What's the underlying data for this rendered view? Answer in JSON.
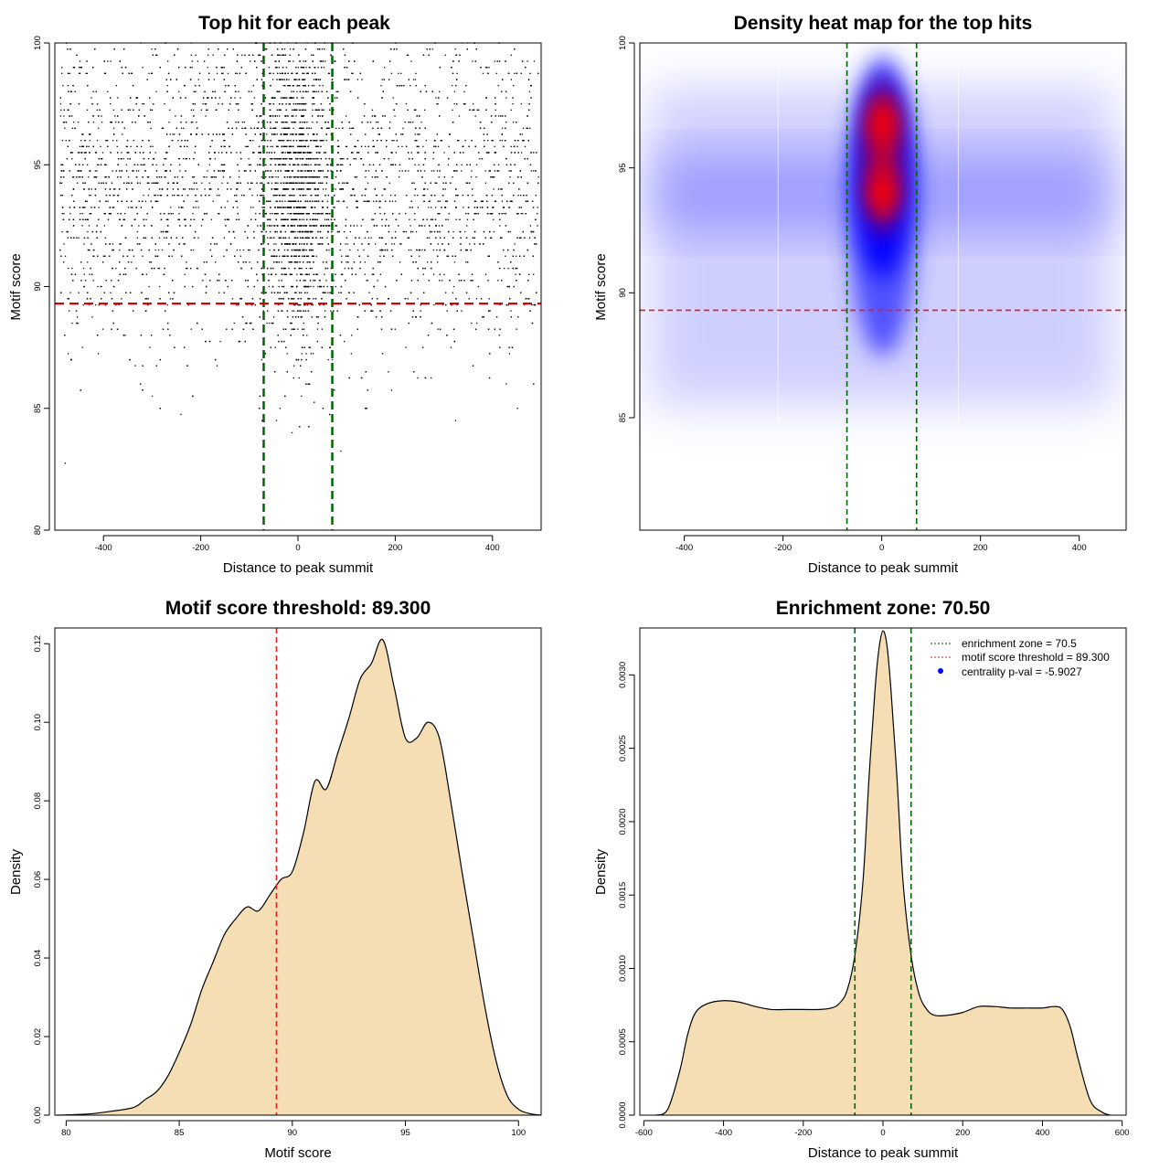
{
  "chart_data": [
    {
      "type": "scatter",
      "title": "Top hit for each peak",
      "xlabel": "Distance to peak summit",
      "ylabel": "Motif score",
      "xlim": [
        -500,
        500
      ],
      "ylim": [
        80,
        100
      ],
      "xticks": [
        -400,
        -200,
        0,
        200,
        400
      ],
      "yticks": [
        80,
        85,
        90,
        95,
        100
      ],
      "xtick_labels": [
        "-400",
        "-200",
        "0",
        "200",
        "400"
      ],
      "ytick_labels": [
        "80",
        "85",
        "90",
        "95",
        "100"
      ],
      "enrichment_lines_x": [
        -70.5,
        70.5
      ],
      "threshold_line_y": 89.3,
      "colors": {
        "points": "#000000",
        "enrichment": "#006400",
        "threshold": "#dd0000"
      },
      "point_distribution": {
        "x_range": [
          -490,
          495
        ],
        "center_sd": 35,
        "center_fraction": 0.3,
        "score_peak": 94,
        "score_sd": 3.2
      }
    },
    {
      "type": "heatmap",
      "title": "Density heat map for the top hits",
      "xlabel": "Distance to peak summit",
      "ylabel": "Motif score",
      "xlim": [
        -490,
        495
      ],
      "ylim": [
        80.5,
        100
      ],
      "xticks": [
        -400,
        -200,
        0,
        200,
        400
      ],
      "yticks": [
        85,
        90,
        95,
        100
      ],
      "xtick_labels": [
        "-400",
        "-200",
        "0",
        "200",
        "400"
      ],
      "ytick_labels": [
        "85",
        "90",
        "95",
        "100"
      ],
      "enrichment_lines_x": [
        -70.5,
        70.5
      ],
      "threshold_line_y": 89.3,
      "hotspots": [
        {
          "x": 2,
          "y": 96.8
        },
        {
          "x": 2,
          "y": 94.0
        }
      ],
      "colors": {
        "low": "#ffffff",
        "mid": "#0000ff",
        "high": "#ff0000",
        "enrichment": "#006400",
        "threshold": "#dd2222"
      }
    },
    {
      "type": "area",
      "title": "Motif score threshold: 89.300",
      "xlabel": "Motif score",
      "ylabel": "Density",
      "xlim": [
        79.5,
        101
      ],
      "ylim": [
        0,
        0.124
      ],
      "xticks": [
        80,
        85,
        90,
        95,
        100
      ],
      "yticks": [
        0,
        0.02,
        0.04,
        0.06,
        0.08,
        0.1,
        0.12
      ],
      "xtick_labels": [
        "80",
        "85",
        "90",
        "95",
        "100"
      ],
      "ytick_labels": [
        "0.00",
        "0.02",
        "0.04",
        "0.06",
        "0.08",
        "0.10",
        "0.12"
      ],
      "x": [
        79.6,
        81,
        82,
        83,
        83.5,
        84,
        84.5,
        85,
        85.5,
        86,
        86.5,
        87,
        87.5,
        88,
        88.5,
        89,
        89.5,
        90,
        90.5,
        91,
        91.5,
        92,
        92.5,
        93,
        93.5,
        94,
        94.5,
        95,
        95.5,
        96,
        96.5,
        97,
        97.5,
        98,
        98.5,
        99,
        99.5,
        100,
        100.5,
        101
      ],
      "values": [
        0,
        0.0003,
        0.001,
        0.002,
        0.004,
        0.006,
        0.01,
        0.016,
        0.023,
        0.032,
        0.039,
        0.046,
        0.05,
        0.053,
        0.052,
        0.056,
        0.06,
        0.062,
        0.072,
        0.085,
        0.083,
        0.092,
        0.101,
        0.111,
        0.115,
        0.121,
        0.109,
        0.096,
        0.096,
        0.1,
        0.096,
        0.08,
        0.062,
        0.045,
        0.028,
        0.014,
        0.005,
        0.0015,
        0.0004,
        0
      ],
      "threshold_line_x": 89.3,
      "colors": {
        "fill": "#f5deb3",
        "line": "#000000",
        "threshold": "#dd2222"
      }
    },
    {
      "type": "area",
      "title": "Enrichment zone: 70.50",
      "xlabel": "Distance to peak summit",
      "ylabel": "Density",
      "xlim": [
        -610,
        610
      ],
      "ylim": [
        0,
        0.00332
      ],
      "xticks": [
        -600,
        -400,
        -200,
        0,
        200,
        400,
        600
      ],
      "yticks": [
        0,
        0.0005,
        0.001,
        0.0015,
        0.002,
        0.0025,
        0.003
      ],
      "xtick_labels": [
        "-600",
        "-400",
        "-200",
        "0",
        "200",
        "400",
        "600"
      ],
      "ytick_labels": [
        "0.0000",
        "0.0005",
        "0.0010",
        "0.0015",
        "0.0020",
        "0.0025",
        "0.0030"
      ],
      "x": [
        -570,
        -540,
        -510,
        -490,
        -470,
        -440,
        -400,
        -360,
        -320,
        -280,
        -240,
        -200,
        -160,
        -130,
        -110,
        -90,
        -70,
        -50,
        -35,
        -20,
        -10,
        0,
        10,
        20,
        35,
        50,
        70,
        90,
        110,
        130,
        160,
        200,
        240,
        280,
        320,
        360,
        400,
        430,
        450,
        470,
        490,
        520,
        550,
        570
      ],
      "values": [
        0,
        4e-05,
        0.0003,
        0.00055,
        0.0007,
        0.00076,
        0.00078,
        0.00077,
        0.00074,
        0.00072,
        0.00072,
        0.00072,
        0.00072,
        0.00073,
        0.00076,
        0.00085,
        0.0011,
        0.0016,
        0.0023,
        0.0029,
        0.00318,
        0.0033,
        0.0032,
        0.0029,
        0.0023,
        0.0016,
        0.0011,
        0.00083,
        0.00072,
        0.00068,
        0.00068,
        0.0007,
        0.00074,
        0.00074,
        0.00073,
        0.00073,
        0.00073,
        0.00074,
        0.00072,
        0.0006,
        0.00038,
        0.0001,
        2e-05,
        0
      ],
      "enrichment_lines_x": [
        -70.5,
        70.5
      ],
      "legend_position": "top-right",
      "legend": [
        {
          "label": "enrichment zone = 70.5",
          "style": "dotted",
          "color": "#006400"
        },
        {
          "label": "motif score threshold = 89.300",
          "style": "dotted",
          "color": "#dd2222"
        },
        {
          "label": "centrality p-val = -5.9027",
          "style": "dot",
          "color": "#0000ff"
        }
      ],
      "colors": {
        "fill": "#f5deb3",
        "line": "#000000",
        "enrichment": "#006400"
      }
    }
  ]
}
